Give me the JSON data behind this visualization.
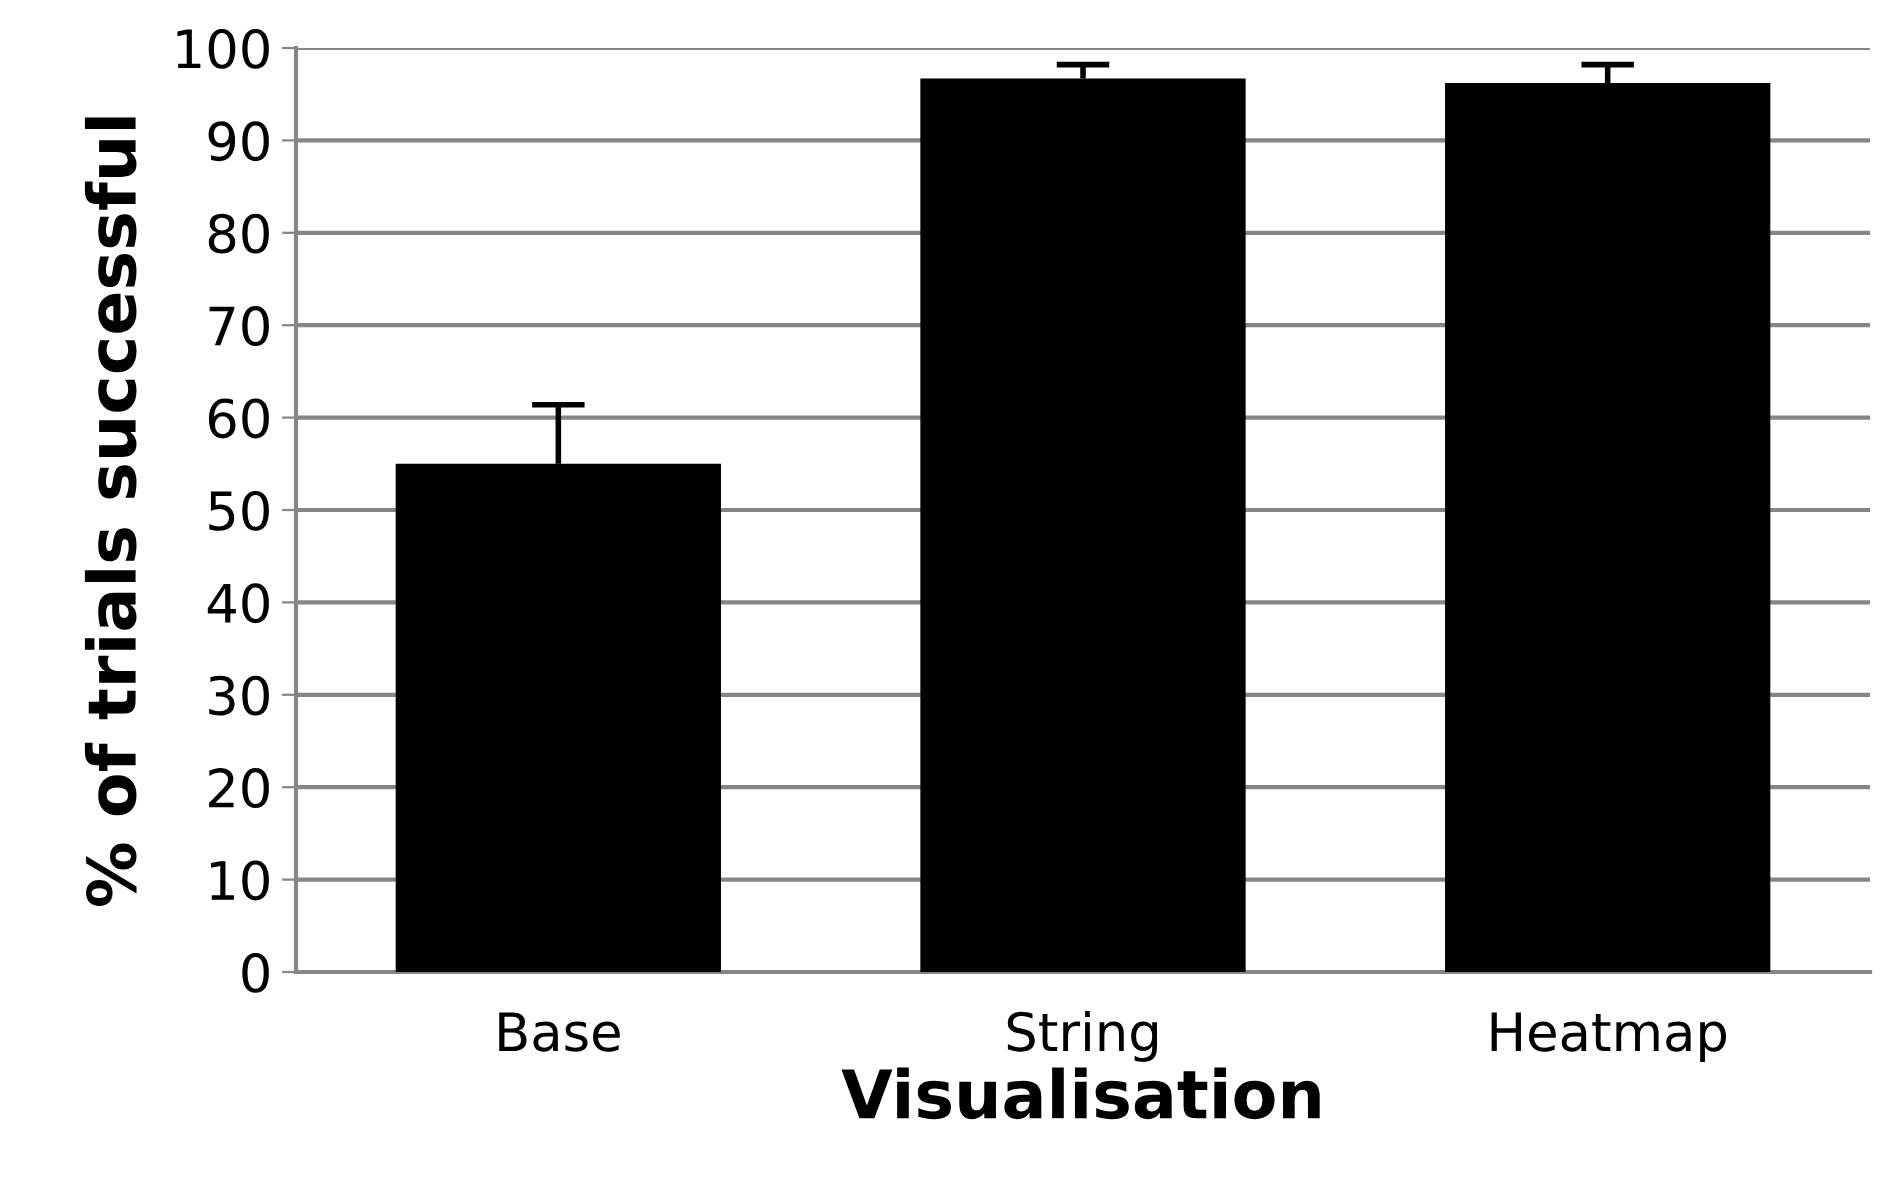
{
  "chart_data": {
    "type": "bar",
    "xlabel": "Visualisation",
    "ylabel": "% of trials successful",
    "categories": [
      "Base",
      "String",
      "Heatmap"
    ],
    "values": [
      55,
      96.7,
      96.2
    ],
    "errors": [
      [
        55,
        61.4
      ],
      [
        96.7,
        98.2
      ],
      [
        96.2,
        98.2
      ]
    ],
    "color": "#000000",
    "ylim": [
      0,
      100
    ],
    "yticks": [
      0,
      10,
      20,
      30,
      40,
      50,
      60,
      70,
      80,
      90,
      100
    ],
    "grid": "y"
  }
}
